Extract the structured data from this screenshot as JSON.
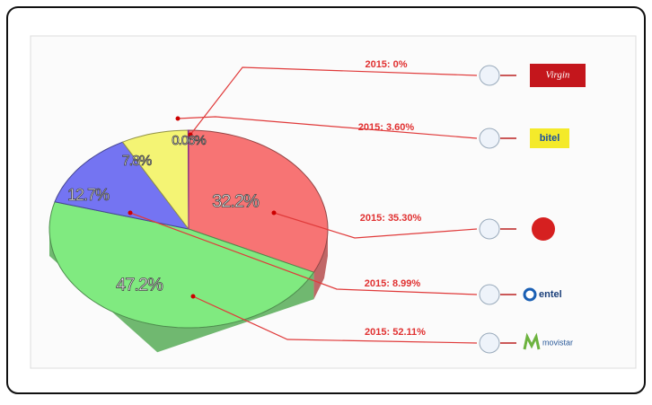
{
  "chart_data": {
    "type": "pie",
    "values": [
      32.2,
      47.2,
      12.7,
      7.8,
      0.06
    ],
    "value_labels": [
      "32.2%",
      "47.2%",
      "12.7%",
      "7.8%",
      "0.06%"
    ],
    "colors": [
      "#f77474",
      "#80ea80",
      "#7474f2",
      "#f4f474",
      "#e34ae3"
    ],
    "start_angle": 0,
    "annotations": [
      {
        "text": "2015: 0%",
        "logo": "Virgin"
      },
      {
        "text": "2015: 3.60%",
        "logo": "bitel"
      },
      {
        "text": "2015: 35.30%"
      },
      {
        "text": "2015: 8.99%",
        "logo": "entel"
      },
      {
        "text": "2015: 52.11%",
        "logo": "movistar"
      }
    ]
  }
}
